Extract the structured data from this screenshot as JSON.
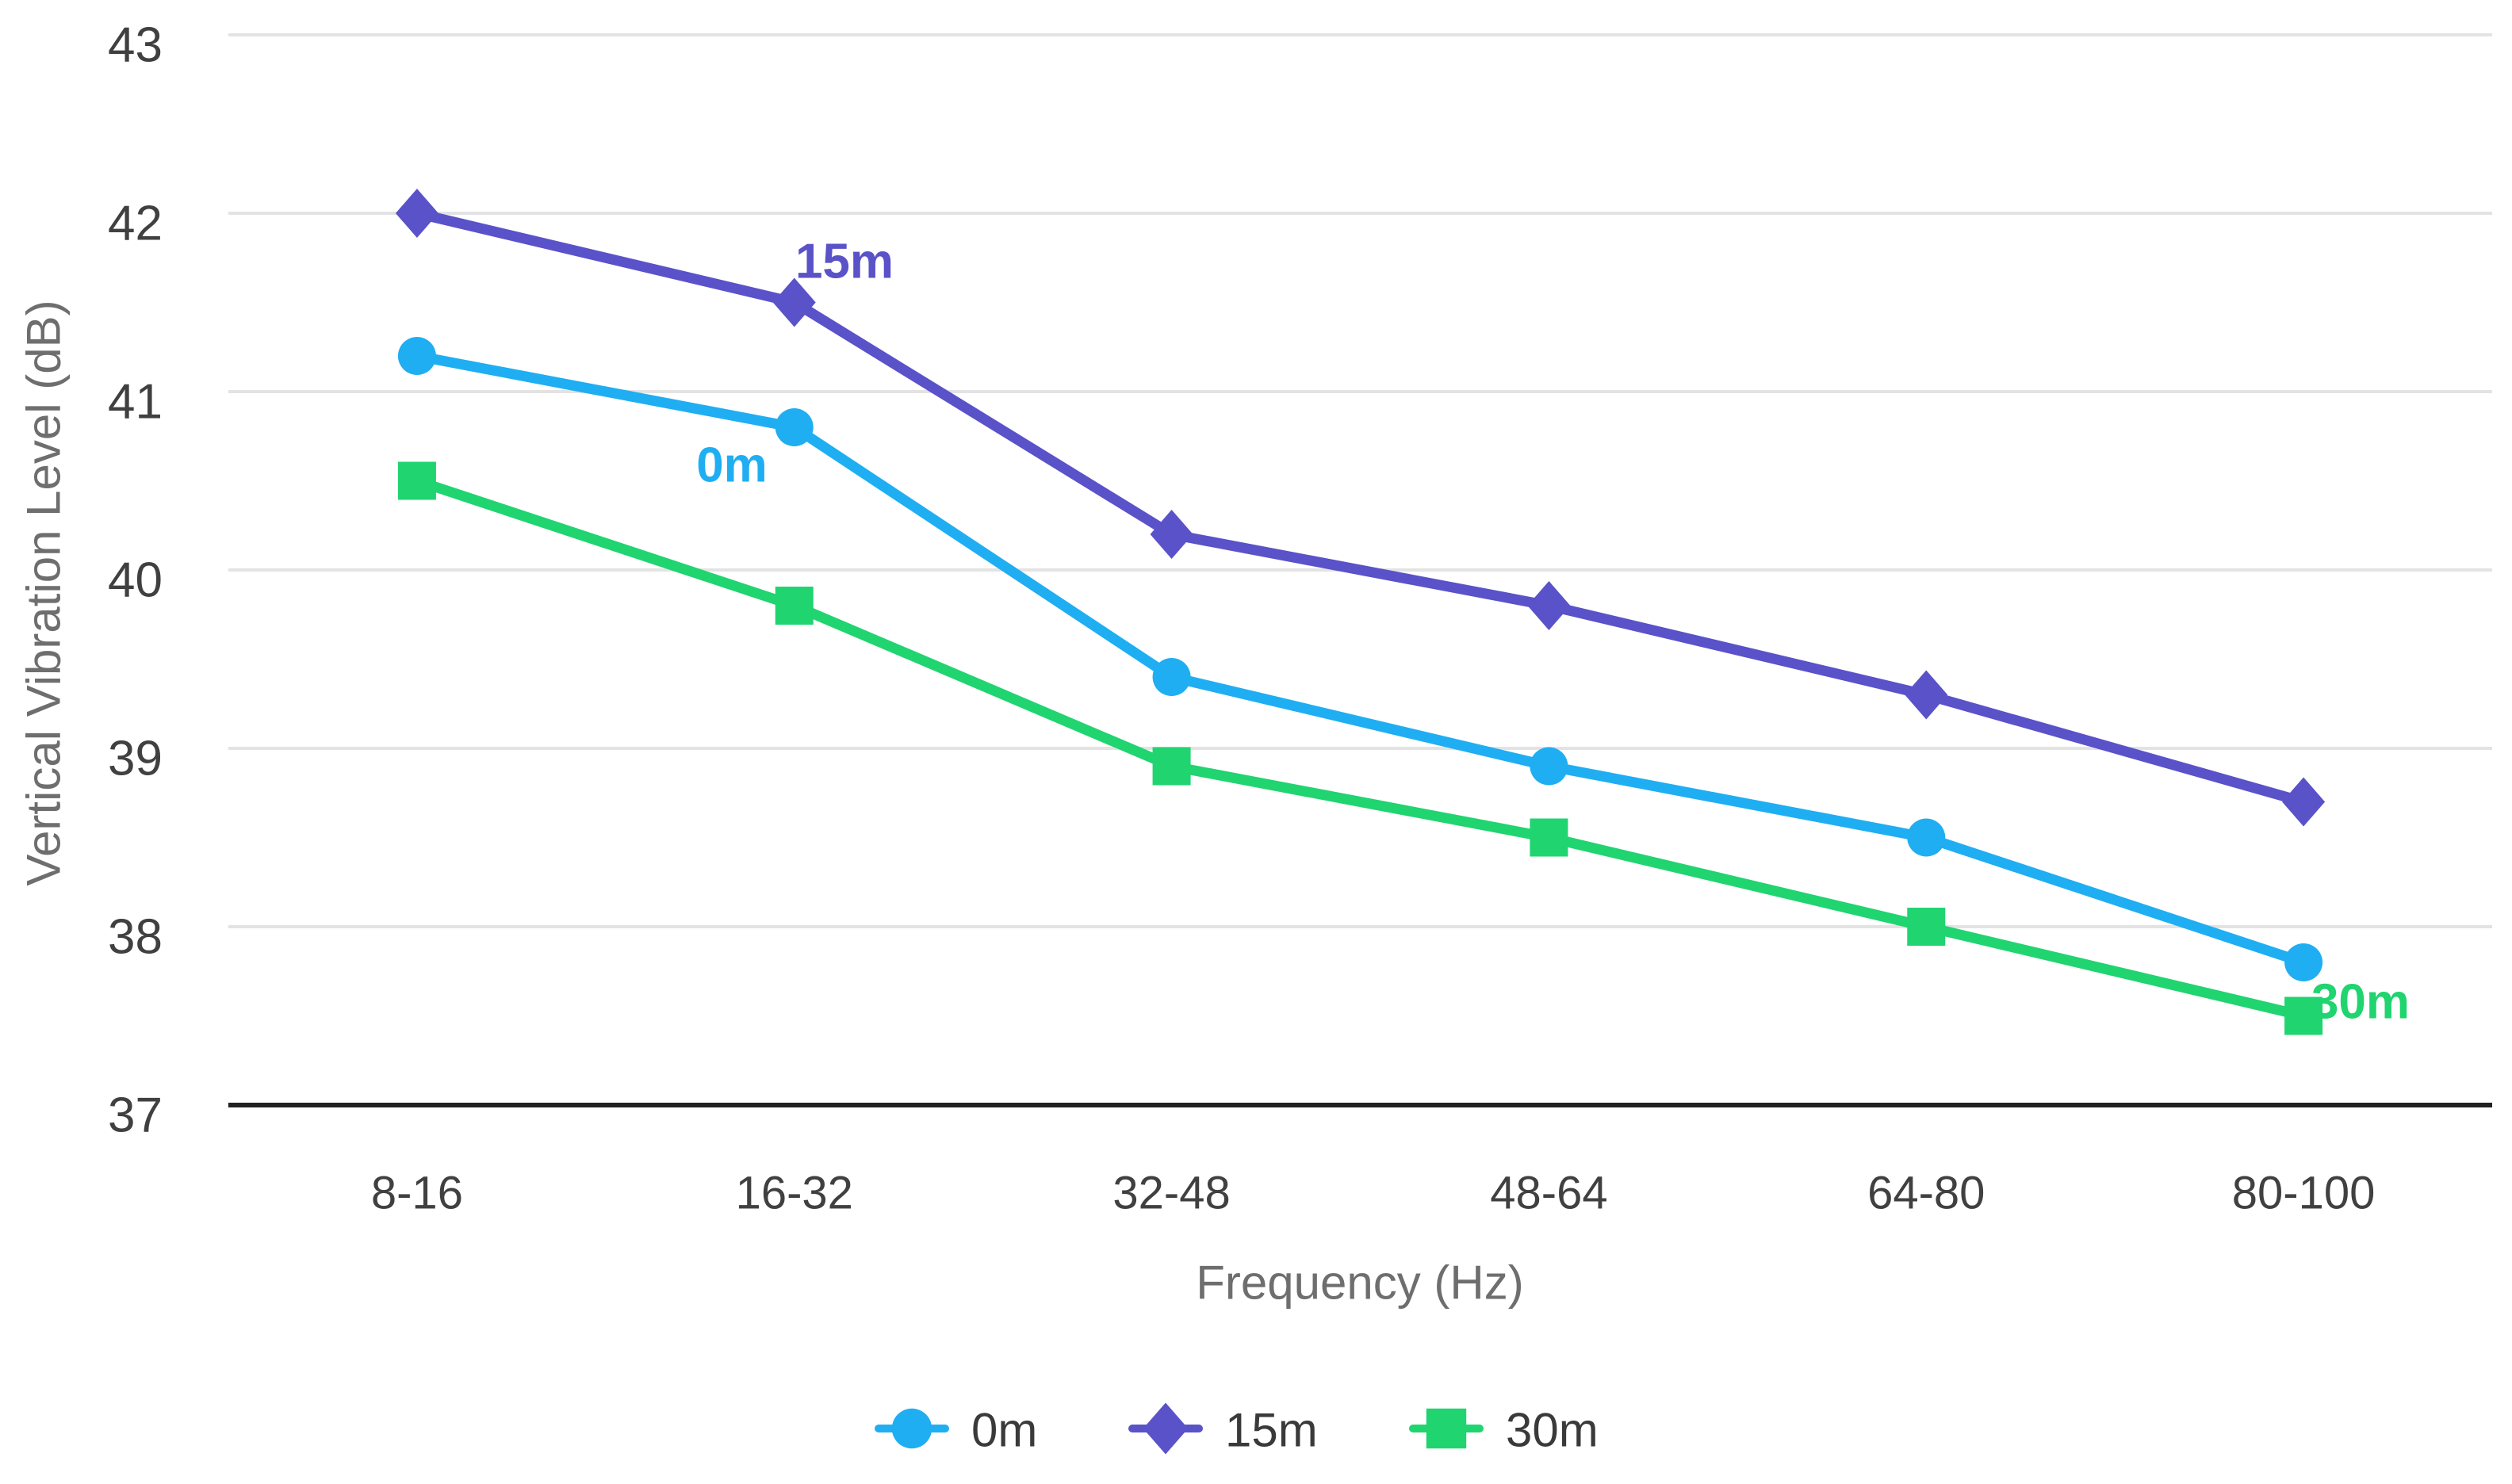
{
  "chart_data": {
    "type": "line",
    "title": "",
    "xlabel": "Frequency (Hz)",
    "ylabel": "Vertical Vibration Level (dB)",
    "categories": [
      "8-16",
      "16-32",
      "32-48",
      "48-64",
      "64-80",
      "80-100"
    ],
    "series": [
      {
        "name": "0m",
        "marker": "circle",
        "color": "#1FAEF2",
        "values": [
          41.2,
          40.8,
          39.4,
          38.9,
          38.5,
          37.8
        ]
      },
      {
        "name": "15m",
        "marker": "diamond",
        "color": "#5A52C8",
        "values": [
          42.0,
          41.5,
          40.2,
          39.8,
          39.3,
          38.7
        ]
      },
      {
        "name": "30m",
        "marker": "square",
        "color": "#20D470",
        "values": [
          40.5,
          39.8,
          38.9,
          38.5,
          38.0,
          37.5
        ]
      }
    ],
    "annotations": [
      {
        "text": "0m",
        "series": "0m",
        "x": 923,
        "y": 587
      },
      {
        "text": "15m",
        "series": "15m",
        "x": 1065,
        "y": 330
      },
      {
        "text": "30m",
        "series": "30m",
        "x": 2977,
        "y": 1264
      }
    ],
    "ylim": [
      37,
      43
    ],
    "ytick_step": 1,
    "yticks": [
      37,
      38,
      39,
      40,
      41,
      42,
      43
    ],
    "grid": true,
    "legend_position": "bottom",
    "legend_labels": [
      "0m",
      "15m",
      "30m"
    ]
  },
  "colors": {
    "gridline": "#E3E3E3",
    "axis_line": "#212121",
    "tick_text": "#404040",
    "axis_title_text": "#6E6E6E",
    "legend_text": "#3A3A3A",
    "background": "#FFFFFF"
  }
}
